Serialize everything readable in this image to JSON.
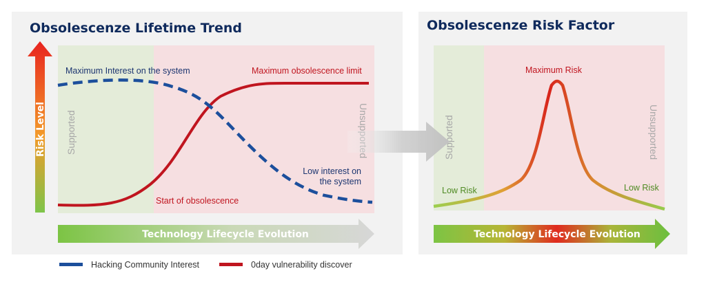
{
  "left_panel": {
    "title": "Obsolescenze Lifetime Trend",
    "risk_axis_label": "Risk Level",
    "supported_label": "Supported",
    "unsupported_label": "Unsupported",
    "max_interest_label": "Maximum Interest on the system",
    "max_obsolescence_label": "Maximum obsolescence limit",
    "low_interest_label": [
      "Low interest on",
      "the system"
    ],
    "start_obsolescence_label": "Start of obsolescence",
    "lifecycle_label": "Technology Lifecycle Evolution"
  },
  "right_panel": {
    "title": "Obsolescenze Risk Factor",
    "supported_label": "Supported",
    "unsupported_label": "Unsupported",
    "max_risk_label": "Maximum Risk",
    "low_risk_left_label": "Low Risk",
    "low_risk_right_label": "Low Risk",
    "lifecycle_label": "Technology Lifecycle Evolution"
  },
  "legend": [
    {
      "label": "Hacking Community Interest",
      "color": "#1c4f9c"
    },
    {
      "label": "0day vulnerability discover",
      "color": "#c0151f"
    }
  ],
  "colors": {
    "panel_bg": "#f2f2f2",
    "supported_zone": "#e4ecd9",
    "unsupported_zone": "#f6dfe1",
    "interest_curve": "#1c4f9c",
    "vulnerability_curve": "#c0151f",
    "title": "#0f2a5c"
  }
}
